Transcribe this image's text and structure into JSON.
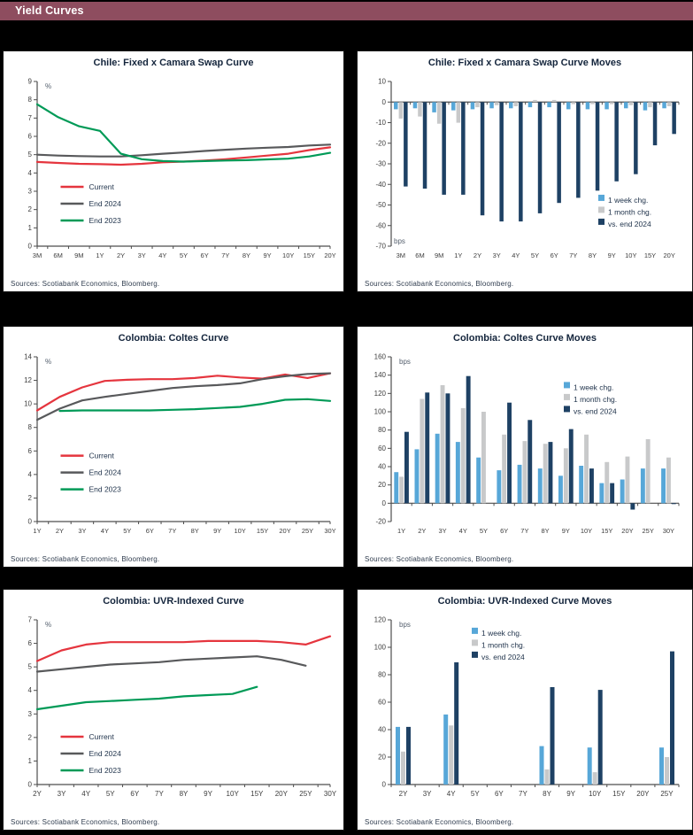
{
  "header": {
    "title": "Yield Curves",
    "bg_color": "#8E4D5F",
    "text_color": "#FFFFFF"
  },
  "palette": {
    "current_red": "#E5353E",
    "end2024_gray": "#58595B",
    "end2023_green": "#009A57",
    "week_lightblue": "#57A7D8",
    "month_gray": "#C8C9CA",
    "vs_end2024_navy": "#1E4164"
  },
  "chart_data": [
    {
      "id": "chile-swap-curve",
      "type": "line",
      "title": "Chile: Fixed x Camara Swap Curve",
      "unit": "%",
      "unit_pos": "top",
      "categories": [
        "3M",
        "6M",
        "9M",
        "1Y",
        "2Y",
        "3Y",
        "4Y",
        "5Y",
        "6Y",
        "7Y",
        "8Y",
        "9Y",
        "10Y",
        "15Y",
        "20Y"
      ],
      "series": [
        {
          "name": "Current",
          "color": "#E5353E",
          "values": [
            4.6,
            4.55,
            4.5,
            4.48,
            4.45,
            4.5,
            4.58,
            4.62,
            4.68,
            4.75,
            4.85,
            4.95,
            5.05,
            5.25,
            5.4
          ]
        },
        {
          "name": "End 2024",
          "color": "#58595B",
          "values": [
            5.0,
            4.95,
            4.92,
            4.9,
            4.9,
            4.97,
            5.05,
            5.12,
            5.2,
            5.27,
            5.33,
            5.38,
            5.42,
            5.5,
            5.55
          ]
        },
        {
          "name": "End 2023",
          "color": "#009A57",
          "values": [
            7.75,
            7.05,
            6.55,
            6.3,
            5.05,
            4.75,
            4.65,
            4.62,
            4.65,
            4.68,
            4.7,
            4.74,
            4.78,
            4.9,
            5.1
          ]
        }
      ],
      "ylim": [
        0,
        9
      ],
      "ytick_step": 1,
      "legend_pos": {
        "x": 0.08,
        "y": 0.64
      },
      "source": "Sources: Scotiabank  Economics,  Bloomberg."
    },
    {
      "id": "chile-swap-curve-moves",
      "type": "bar",
      "title": "Chile: Fixed x Camara Swap Curve Moves",
      "unit": "bps",
      "unit_pos": "bottom",
      "categories": [
        "3M",
        "6M",
        "9M",
        "1Y",
        "2Y",
        "3Y",
        "4Y",
        "5Y",
        "6Y",
        "7Y",
        "8Y",
        "9Y",
        "10Y",
        "15Y",
        "20Y"
      ],
      "series": [
        {
          "name": "1 week chg.",
          "color": "#57A7D8",
          "values": [
            -3.5,
            -3,
            -5,
            -4,
            -3.5,
            -3,
            -3,
            -2.5,
            -2.5,
            -3.5,
            -3.5,
            -3.5,
            -3,
            -4,
            -3
          ]
        },
        {
          "name": "1 month chg.",
          "color": "#C8C9CA",
          "values": [
            -8,
            -7,
            -10.5,
            -10,
            -2.5,
            -1.5,
            -2,
            1,
            1,
            -1,
            -1,
            -1,
            -1.5,
            -2.5,
            -2
          ]
        },
        {
          "name": "vs. end 2024",
          "color": "#1E4164",
          "values": [
            -41,
            -42,
            -45,
            -45,
            -55,
            -58,
            -58,
            -54,
            -49,
            -46.5,
            -43,
            -38.5,
            -35,
            -21,
            -15.5
          ]
        }
      ],
      "ylim": [
        -70,
        10
      ],
      "ytick_step": 10,
      "legend_pos": {
        "x": 0.72,
        "y": 0.72
      },
      "source": "Sources: Scotiabank  Economics,  Bloomberg."
    },
    {
      "id": "colombia-coltes-curve",
      "type": "line",
      "title": "Colombia: Coltes Curve",
      "unit": "%",
      "unit_pos": "top",
      "categories": [
        "1Y",
        "2Y",
        "3Y",
        "4Y",
        "5Y",
        "6Y",
        "7Y",
        "8Y",
        "9Y",
        "10Y",
        "15Y",
        "20Y",
        "25Y",
        "30Y"
      ],
      "series": [
        {
          "name": "Current",
          "color": "#E5353E",
          "values": [
            9.45,
            10.6,
            11.4,
            11.95,
            12.05,
            12.1,
            12.1,
            12.2,
            12.4,
            12.25,
            12.15,
            12.5,
            12.2,
            12.6
          ]
        },
        {
          "name": "End 2024",
          "color": "#58595B",
          "values": [
            8.65,
            9.6,
            10.3,
            10.6,
            10.85,
            11.1,
            11.35,
            11.5,
            11.6,
            11.75,
            12.1,
            12.35,
            12.55,
            12.6
          ]
        },
        {
          "name": "End 2023",
          "color": "#009A57",
          "values": [
            null,
            9.4,
            9.45,
            9.45,
            9.45,
            9.45,
            9.5,
            9.55,
            9.65,
            9.75,
            10.0,
            10.35,
            10.4,
            10.25
          ]
        }
      ],
      "ylim": [
        0,
        14
      ],
      "ytick_step": 2,
      "legend_pos": {
        "x": 0.08,
        "y": 0.6
      },
      "source": "Sources: Scotiabank  Economics,  Bloomberg."
    },
    {
      "id": "colombia-coltes-curve-moves",
      "type": "bar",
      "title": "Colombia: Coltes Curve Moves",
      "unit": "bps",
      "unit_pos": "top",
      "categories": [
        "1Y",
        "2Y",
        "3Y",
        "4Y",
        "5Y",
        "6Y",
        "7Y",
        "8Y",
        "9Y",
        "10Y",
        "15Y",
        "20Y",
        "25Y",
        "30Y"
      ],
      "series": [
        {
          "name": "1 week chg.",
          "color": "#57A7D8",
          "values": [
            34,
            59,
            76,
            67,
            50,
            36,
            42,
            38,
            30,
            41,
            22,
            26,
            38,
            38
          ]
        },
        {
          "name": "1 month chg.",
          "color": "#C8C9CA",
          "values": [
            29,
            114,
            129,
            104,
            100,
            75,
            68,
            65,
            60,
            75,
            45,
            51,
            70,
            50
          ]
        },
        {
          "name": "vs. end 2024",
          "color": "#1E4164",
          "values": [
            78,
            121,
            120,
            139,
            0,
            110,
            91,
            67,
            81,
            38,
            22,
            -7,
            0,
            -1
          ]
        }
      ],
      "ylim": [
        -20,
        160
      ],
      "ytick_step": 20,
      "legend_pos": {
        "x": 0.6,
        "y": 0.185
      },
      "source": "Sources: Scotiabank  Economics,  Bloomberg."
    },
    {
      "id": "colombia-uvr-curve",
      "type": "line",
      "title": "Colombia: UVR-Indexed  Curve",
      "unit": "%",
      "unit_pos": "top",
      "categories": [
        "2Y",
        "3Y",
        "4Y",
        "5Y",
        "6Y",
        "7Y",
        "8Y",
        "9Y",
        "10Y",
        "15Y",
        "20Y",
        "25Y",
        "30Y"
      ],
      "series": [
        {
          "name": "Current",
          "color": "#E5353E",
          "values": [
            5.25,
            5.7,
            5.95,
            6.05,
            6.05,
            6.05,
            6.05,
            6.1,
            6.1,
            6.1,
            6.05,
            5.95,
            6.3
          ]
        },
        {
          "name": "End 2024",
          "color": "#58595B",
          "values": [
            4.8,
            4.9,
            5.0,
            5.1,
            5.15,
            5.2,
            5.3,
            5.35,
            5.4,
            5.45,
            5.3,
            5.05,
            null
          ]
        },
        {
          "name": "End 2023",
          "color": "#009A57",
          "values": [
            3.2,
            3.35,
            3.5,
            3.55,
            3.6,
            3.65,
            3.75,
            3.8,
            3.85,
            4.15,
            null,
            null,
            null
          ]
        }
      ],
      "ylim": [
        0,
        7
      ],
      "ytick_step": 1,
      "legend_pos": {
        "x": 0.08,
        "y": 0.71
      },
      "source": "Sources: Scotiabank  Economics,  Bloomberg."
    },
    {
      "id": "colombia-uvr-curve-moves",
      "type": "bar",
      "title": "Colombia: UVR-Indexed  Curve Moves",
      "unit": "bps",
      "unit_pos": "top",
      "categories": [
        "2Y",
        "3Y",
        "4Y",
        "5Y",
        "6Y",
        "7Y",
        "8Y",
        "9Y",
        "10Y",
        "15Y",
        "20Y",
        "25Y"
      ],
      "series": [
        {
          "name": "1 week chg.",
          "color": "#57A7D8",
          "values": [
            42,
            0,
            51,
            0,
            0,
            0,
            28,
            0,
            27,
            0,
            0,
            27
          ]
        },
        {
          "name": "1 month chg.",
          "color": "#C8C9CA",
          "values": [
            24,
            0,
            43,
            0,
            0,
            0,
            11,
            0,
            9,
            0,
            0,
            20
          ]
        },
        {
          "name": "vs. end 2024",
          "color": "#1E4164",
          "values": [
            42,
            0,
            89,
            0,
            0,
            0,
            71,
            0,
            69,
            0,
            0,
            97
          ]
        }
      ],
      "ylim": [
        0,
        120
      ],
      "ytick_step": 20,
      "legend_pos": {
        "x": 0.28,
        "y": 0.08
      },
      "source": "Sources: Scotiabank  Economics,  Bloomberg."
    }
  ]
}
